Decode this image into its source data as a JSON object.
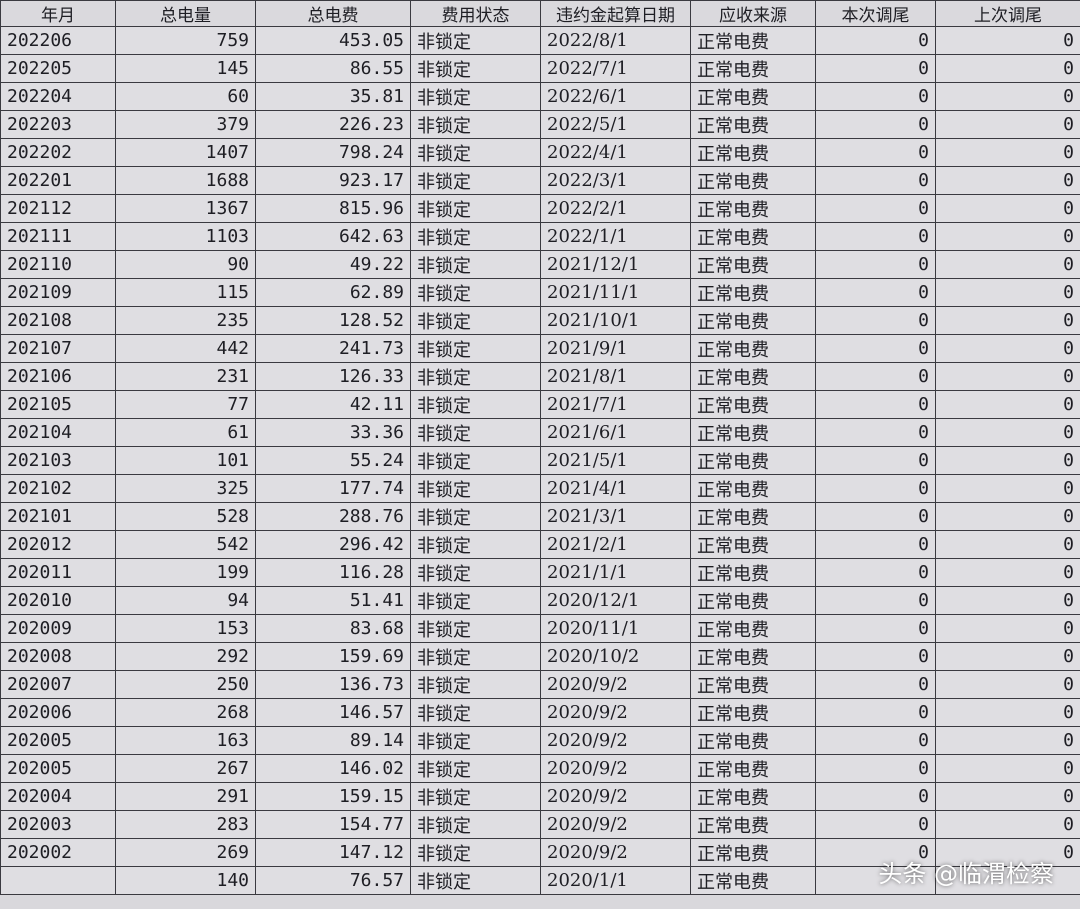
{
  "table": {
    "header": [
      "年月",
      "总电量",
      "总电费",
      "费用状态",
      "违约金起算日期",
      "应收来源",
      "本次调尾",
      "上次调尾"
    ],
    "rows": [
      [
        "202206",
        759,
        453.05,
        "非锁定",
        "2022/8/1",
        "正常电费",
        0,
        0
      ],
      [
        "202205",
        145,
        86.55,
        "非锁定",
        "2022/7/1",
        "正常电费",
        0,
        0
      ],
      [
        "202204",
        60,
        35.81,
        "非锁定",
        "2022/6/1",
        "正常电费",
        0,
        0
      ],
      [
        "202203",
        379,
        226.23,
        "非锁定",
        "2022/5/1",
        "正常电费",
        0,
        0
      ],
      [
        "202202",
        1407,
        798.24,
        "非锁定",
        "2022/4/1",
        "正常电费",
        0,
        0
      ],
      [
        "202201",
        1688,
        923.17,
        "非锁定",
        "2022/3/1",
        "正常电费",
        0,
        0
      ],
      [
        "202112",
        1367,
        815.96,
        "非锁定",
        "2022/2/1",
        "正常电费",
        0,
        0
      ],
      [
        "202111",
        1103,
        642.63,
        "非锁定",
        "2022/1/1",
        "正常电费",
        0,
        0
      ],
      [
        "202110",
        90,
        49.22,
        "非锁定",
        "2021/12/1",
        "正常电费",
        0,
        0
      ],
      [
        "202109",
        115,
        62.89,
        "非锁定",
        "2021/11/1",
        "正常电费",
        0,
        0
      ],
      [
        "202108",
        235,
        128.52,
        "非锁定",
        "2021/10/1",
        "正常电费",
        0,
        0
      ],
      [
        "202107",
        442,
        241.73,
        "非锁定",
        "2021/9/1",
        "正常电费",
        0,
        0
      ],
      [
        "202106",
        231,
        126.33,
        "非锁定",
        "2021/8/1",
        "正常电费",
        0,
        0
      ],
      [
        "202105",
        77,
        42.11,
        "非锁定",
        "2021/7/1",
        "正常电费",
        0,
        0
      ],
      [
        "202104",
        61,
        33.36,
        "非锁定",
        "2021/6/1",
        "正常电费",
        0,
        0
      ],
      [
        "202103",
        101,
        55.24,
        "非锁定",
        "2021/5/1",
        "正常电费",
        0,
        0
      ],
      [
        "202102",
        325,
        177.74,
        "非锁定",
        "2021/4/1",
        "正常电费",
        0,
        0
      ],
      [
        "202101",
        528,
        288.76,
        "非锁定",
        "2021/3/1",
        "正常电费",
        0,
        0
      ],
      [
        "202012",
        542,
        296.42,
        "非锁定",
        "2021/2/1",
        "正常电费",
        0,
        0
      ],
      [
        "202011",
        199,
        116.28,
        "非锁定",
        "2021/1/1",
        "正常电费",
        0,
        0
      ],
      [
        "202010",
        94,
        51.41,
        "非锁定",
        "2020/12/1",
        "正常电费",
        0,
        0
      ],
      [
        "202009",
        153,
        83.68,
        "非锁定",
        "2020/11/1",
        "正常电费",
        0,
        0
      ],
      [
        "202008",
        292,
        159.69,
        "非锁定",
        "2020/10/2",
        "正常电费",
        0,
        0
      ],
      [
        "202007",
        250,
        136.73,
        "非锁定",
        "2020/9/2",
        "正常电费",
        0,
        0
      ],
      [
        "202006",
        268,
        146.57,
        "非锁定",
        "2020/9/2",
        "正常电费",
        0,
        0
      ],
      [
        "202005",
        163,
        89.14,
        "非锁定",
        "2020/9/2",
        "正常电费",
        0,
        0
      ],
      [
        "202005",
        267,
        146.02,
        "非锁定",
        "2020/9/2",
        "正常电费",
        0,
        0
      ],
      [
        "202004",
        291,
        159.15,
        "非锁定",
        "2020/9/2",
        "正常电费",
        0,
        0
      ],
      [
        "202003",
        283,
        154.77,
        "非锁定",
        "2020/9/2",
        "正常电费",
        0,
        0
      ],
      [
        "202002",
        269,
        147.12,
        "非锁定",
        "2020/9/2",
        "正常电费",
        0,
        0
      ],
      [
        null,
        140,
        76.57,
        "非锁定",
        "2020/1/1",
        "正常电费",
        null,
        null
      ]
    ]
  },
  "watermark": "头条 @临渭检察"
}
